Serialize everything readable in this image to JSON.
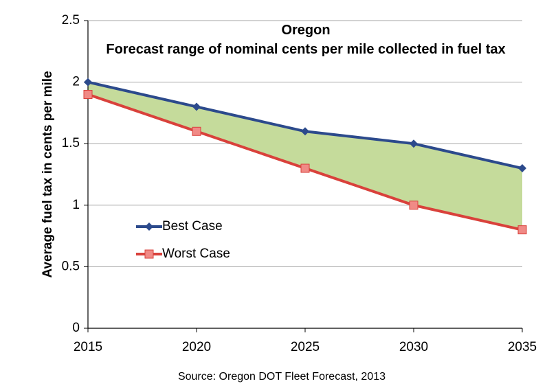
{
  "chart_data": {
    "type": "line",
    "title": "Oregon",
    "subtitle": "Forecast range of nominal cents per mile collected in fuel tax",
    "y_label": "Average fuel tax in cents per mile",
    "source": "Source: Oregon DOT Fleet Forecast, 2013",
    "x": [
      2015,
      2020,
      2025,
      2030,
      2035
    ],
    "xlim": [
      2015,
      2035
    ],
    "xticks": [
      2015,
      2020,
      2025,
      2030,
      2035
    ],
    "ylim": [
      0,
      2.5
    ],
    "yticks": [
      0,
      0.5,
      1,
      1.5,
      2,
      2.5
    ],
    "grid": true,
    "legend": "left",
    "range_fill": "#c5db9b",
    "series": [
      {
        "name": "Best Case",
        "color": "#2c4a8c",
        "marker": "diamond",
        "values": [
          2.0,
          1.8,
          1.6,
          1.5,
          1.3
        ]
      },
      {
        "name": "Worst Case",
        "color": "#d9413b",
        "marker": "square",
        "values": [
          1.9,
          1.6,
          1.3,
          1.0,
          0.8
        ]
      }
    ]
  }
}
